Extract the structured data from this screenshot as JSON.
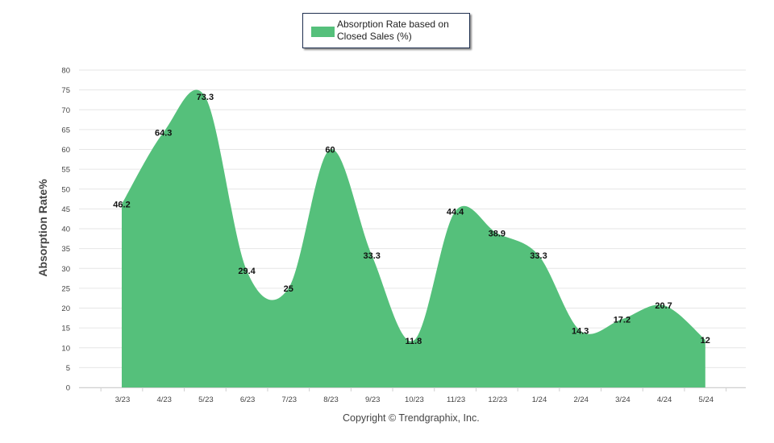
{
  "chart_data": {
    "type": "area",
    "categories": [
      "3/23",
      "4/23",
      "5/23",
      "6/23",
      "7/23",
      "8/23",
      "9/23",
      "10/23",
      "11/23",
      "12/23",
      "1/24",
      "2/24",
      "3/24",
      "4/24",
      "5/24"
    ],
    "series": [
      {
        "name": "Absorption Rate based on Closed Sales (%)",
        "values": [
          46.2,
          64.3,
          73.3,
          29.4,
          25,
          60,
          33.3,
          11.8,
          44.4,
          38.9,
          33.3,
          14.3,
          17.2,
          20.7,
          12
        ],
        "labels": [
          "46.2",
          "64.3",
          "73.3",
          "29.4",
          "25",
          "60",
          "33.3",
          "11.8",
          "44.4",
          "38.9",
          "33.3",
          "14.3",
          "17.2",
          "20.7",
          "12"
        ],
        "color": "#55c07b"
      }
    ],
    "ylabel": "Absorption Rate%",
    "xlabel": "",
    "ylim": [
      0,
      80
    ],
    "yticks": [
      "0",
      "5",
      "10",
      "15",
      "20",
      "25",
      "30",
      "35",
      "40",
      "45",
      "50",
      "55",
      "60",
      "65",
      "70",
      "75",
      "80"
    ],
    "grid": true,
    "legend_position": "top-center"
  },
  "legend": {
    "label": "Absorption Rate based on Closed Sales (%)"
  },
  "footer": {
    "copyright": "Copyright © Trendgraphix, Inc."
  },
  "colors": {
    "fill": "#55c07b",
    "grid": "#e6e6e6",
    "axis_text": "#444444"
  }
}
